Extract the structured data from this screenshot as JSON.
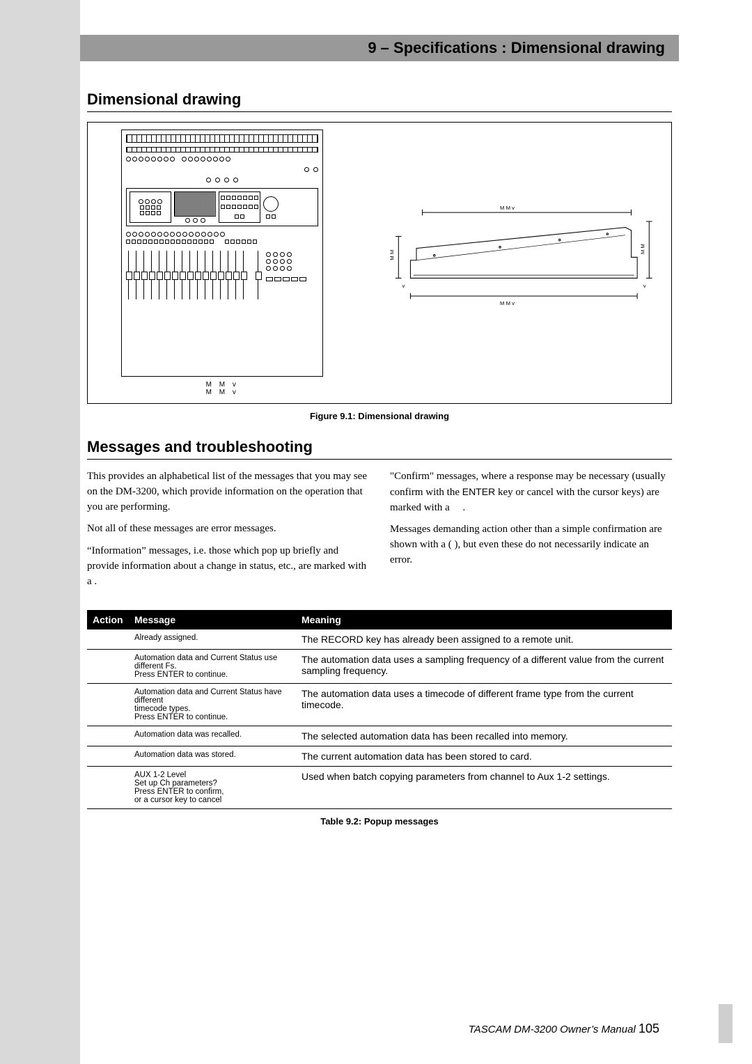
{
  "header": {
    "title": "9 – Specifications : Dimensional drawing"
  },
  "section1": {
    "title": "Dimensional drawing"
  },
  "figure": {
    "dims": {
      "width_top": "M M          v",
      "width_bottom": "M M          v",
      "side_top": "M M          v",
      "side_bottom": "M M          v",
      "side_left_v": "M M",
      "side_left_v2": "v",
      "side_right_v": "M M",
      "side_right_v2": "v"
    },
    "caption": "Figure 9.1: Dimensional drawing"
  },
  "section2": {
    "title": "Messages and troubleshooting"
  },
  "body": {
    "left": [
      "This provides an alphabetical list of the messages that you may see on the DM-3200, which provide information on the operation that you are performing.",
      "Not all of these messages are error messages.",
      "“Information” messages, i.e. those which pop up briefly and provide information about a change in status, etc., are marked with a     ."
    ],
    "right": [
      "“Confirm” messages, where a response may be necessary (usually confirm with the ENTER key or cancel with the cursor keys) are marked with a      .",
      "Messages demanding action other than a simple confirmation are shown with a (    ), but even these do not necessarily indicate an error."
    ]
  },
  "table": {
    "headers": [
      "Action",
      "Message",
      "Meaning"
    ],
    "rows": [
      {
        "action": "",
        "message": "Already assigned.",
        "meaning": "The RECORD key has already been assigned to a remote unit."
      },
      {
        "action": "",
        "message": "Automation data and Current Status use different Fs.\nPress ENTER to continue.",
        "meaning": "The automation data uses a sampling frequency of a different value from the current sampling frequency."
      },
      {
        "action": "",
        "message": "Automation data and Current Status have different\ntimecode types.\nPress ENTER to continue.",
        "meaning": "The automation data uses a timecode of different frame type from the current timecode."
      },
      {
        "action": "",
        "message": "Automation data was recalled.",
        "meaning": "The selected automation data has been recalled into memory."
      },
      {
        "action": "",
        "message": "Automation data was stored.",
        "meaning": "The current automation data has been stored to card."
      },
      {
        "action": "",
        "message": "AUX 1-2 Level\nSet up Ch parameters?\nPress ENTER to confirm,\nor a cursor key to cancel",
        "meaning": "Used when batch copying parameters from channel to Aux 1-2 settings."
      }
    ],
    "caption": "Table 9.2: Popup messages"
  },
  "footer": {
    "text": "TASCAM DM-3200 Owner’s Manual ",
    "page": "105"
  },
  "colors": {
    "gutter": "#d9d9d9",
    "header_bg": "#999999",
    "table_header_bg": "#000000",
    "table_header_fg": "#ffffff"
  }
}
